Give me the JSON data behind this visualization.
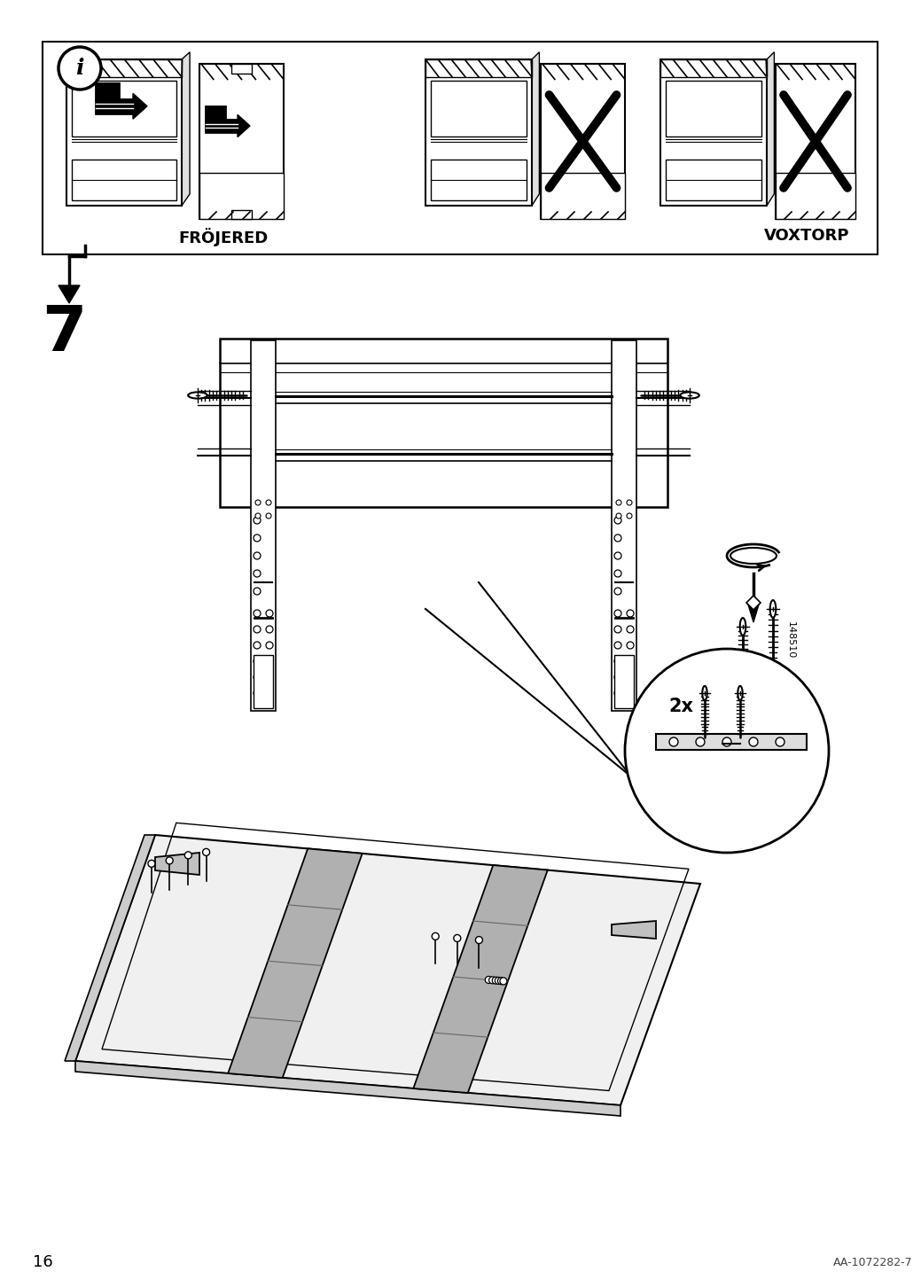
{
  "page_number": "16",
  "article_number": "AA-1072282-7",
  "background_color": "#ffffff",
  "line_color": "#000000",
  "frojered_label": "FRÖJERED",
  "voxtorp_label": "VOXTORP",
  "step_number": "7",
  "quantity_label": "2x",
  "label_148510": "148510"
}
